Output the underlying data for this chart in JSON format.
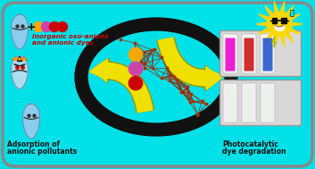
{
  "bg_color": "#00e0e8",
  "border_color": "#888888",
  "left_label1": "Adsorption of",
  "left_label2": "anionic pollutants",
  "right_label1": "Photocatalytic",
  "right_label2": "dye degradation",
  "top_label1": "Inorganic oxo-anions",
  "top_label2": "and anionic dyes",
  "label_color_red": "#cc0000",
  "label_color_black": "#111111",
  "dot_colors_top": [
    "#f5a800",
    "#cc44aa",
    "#cc0000",
    "#cc0000"
  ],
  "dot_colors_mid": [
    "#f5a800",
    "#cc44aa",
    "#cc0000"
  ],
  "arrow_color": "#f0e000",
  "arrow_edge": "#999900",
  "oval_color": "#111111",
  "mol_color1": "#8B3010",
  "mol_color2": "#CC5520",
  "drop_color": "#99ccdd",
  "drop_edge": "#5588aa",
  "sun_color": "#FFD700",
  "sun_ray_color": "#FFD700",
  "panel_bg": "#d8d8d8",
  "panel_edge": "#999999",
  "vial1_colors": [
    "#ee00cc",
    "#cc1111",
    "#2255cc"
  ],
  "vial2_color": "#ccddcc",
  "fig_width": 3.53,
  "fig_height": 1.89,
  "dpi": 100
}
